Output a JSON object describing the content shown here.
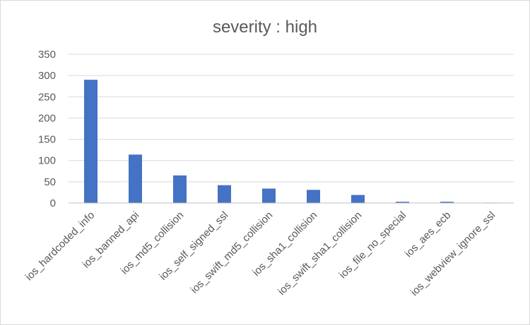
{
  "chart_data": {
    "type": "bar",
    "title": "severity : high",
    "xlabel": "",
    "ylabel": "",
    "ylim": [
      0,
      350
    ],
    "yticks": [
      0,
      50,
      100,
      150,
      200,
      250,
      300,
      350
    ],
    "grid": true,
    "legend": "none",
    "categories": [
      "ios_hardcoded_info",
      "ios_banned_api",
      "ios_md5_collision",
      "ios_self_signed_ssl",
      "ios_swift_md5_collision",
      "ios_sha1_collision",
      "ios_swift_sha1_collision",
      "ios_file_no_special",
      "ios_aes_ecb",
      "ios_webview_ignore_ssl"
    ],
    "series": [
      {
        "values": [
          290,
          114,
          65,
          42,
          34,
          31,
          19,
          3,
          3,
          1
        ],
        "color": "#4472c4"
      }
    ]
  }
}
